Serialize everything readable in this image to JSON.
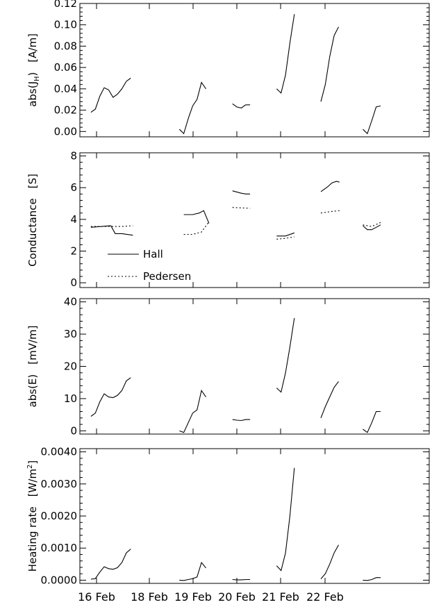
{
  "x_ticks": [
    {
      "label": "16 Feb",
      "day": 16.0
    },
    {
      "label": "18 Feb",
      "day": 18.0
    },
    {
      "label": "19 Feb",
      "day": 19.0
    },
    {
      "label": "20 Feb",
      "day": 20.0
    },
    {
      "label": "21 Feb",
      "day": 21.0
    },
    {
      "label": "22 Feb",
      "day": 22.0
    }
  ],
  "legend": {
    "hall": "Hall",
    "pedersen": "Pedersen"
  },
  "panels": [
    {
      "key": "jh",
      "ylabel_main": "abs(J",
      "ylabel_sub": "H",
      "ylabel_tail": ")",
      "yunit_main": "[A/m]",
      "yunit_sup": "",
      "yunit_tail": "",
      "ylim": [
        -0.005,
        0.12
      ],
      "yticks": [
        "0.12",
        "0.10",
        "0.08",
        "0.06",
        "0.04",
        "0.02",
        "0.00"
      ],
      "ytick_values": [
        0.12,
        0.1,
        0.08,
        0.06,
        0.04,
        0.02,
        0.0
      ]
    },
    {
      "key": "cond",
      "ylabel_main": "Conductance",
      "ylabel_sub": "",
      "ylabel_tail": "",
      "yunit_main": "[S]",
      "yunit_sup": "",
      "yunit_tail": "",
      "ylim": [
        -0.3,
        8.2
      ],
      "yticks": [
        "8",
        "6",
        "4",
        "2",
        "0"
      ],
      "ytick_values": [
        8,
        6,
        4,
        2,
        0
      ]
    },
    {
      "key": "e",
      "ylabel_main": "abs(E)",
      "ylabel_sub": "",
      "ylabel_tail": "",
      "yunit_main": "[mV/m]",
      "yunit_sup": "",
      "yunit_tail": "",
      "ylim": [
        -1,
        41
      ],
      "yticks": [
        "40",
        "30",
        "20",
        "10",
        "0"
      ],
      "ytick_values": [
        40,
        30,
        20,
        10,
        0
      ]
    },
    {
      "key": "heat",
      "ylabel_main": "Heating rate",
      "ylabel_sub": "",
      "ylabel_tail": "",
      "yunit_main": "[W/m",
      "yunit_sup": "2",
      "yunit_tail": "]",
      "ylim": [
        -0.0001,
        0.0041
      ],
      "yticks": [
        "0.0040",
        "0.0030",
        "0.0020",
        "0.0010",
        "0.0000"
      ],
      "ytick_values": [
        0.004,
        0.003,
        0.002,
        0.001,
        0.0
      ]
    }
  ],
  "chart_data": [
    {
      "type": "line",
      "ylabel": "abs(JH) [A/m]",
      "ylim": [
        -0.005,
        0.12
      ],
      "x_unit": "day of February",
      "series": [
        {
          "segments": [
            {
              "x": [
                15.75,
                15.85,
                15.95,
                16.05,
                16.15,
                16.25,
                16.35,
                16.45,
                16.55,
                16.65
              ],
              "y": [
                0.018,
                0.021,
                0.033,
                0.041,
                0.039,
                0.032,
                0.035,
                0.04,
                0.047,
                0.05
              ]
            },
            {
              "x": [
                17.75,
                17.85,
                17.95,
                18.05,
                18.15,
                18.25,
                18.35
              ],
              "y": [
                0.002,
                -0.002,
                0.012,
                0.024,
                0.03,
                0.046,
                0.04
              ]
            },
            {
              "x": [
                18.95,
                19.05,
                19.15,
                19.25,
                19.35
              ],
              "y": [
                0.026,
                0.023,
                0.022,
                0.025,
                0.025
              ]
            },
            {
              "x": [
                19.95,
                20.05,
                20.15,
                20.25,
                20.35
              ],
              "y": [
                0.04,
                0.036,
                0.053,
                0.083,
                0.11
              ]
            },
            {
              "x": [
                20.95,
                21.05,
                21.15,
                21.25,
                21.35
              ],
              "y": [
                0.028,
                0.044,
                0.07,
                0.09,
                0.098
              ]
            },
            {
              "x": [
                21.9,
                22.0,
                22.1,
                22.2,
                22.3
              ],
              "y": [
                0.002,
                -0.002,
                0.01,
                0.023,
                0.024
              ]
            }
          ]
        }
      ]
    },
    {
      "type": "line",
      "ylabel": "Conductance [S]",
      "ylim": [
        -0.3,
        8.2
      ],
      "x_unit": "day of February",
      "series": [
        {
          "name": "Hall",
          "style": "solid",
          "segments": [
            {
              "x": [
                15.75,
                16.2,
                16.3,
                16.45,
                16.7
              ],
              "y": [
                3.5,
                3.6,
                3.1,
                3.1,
                3.0
              ]
            },
            {
              "x": [
                17.85,
                18.05,
                18.2,
                18.3,
                18.42
              ],
              "y": [
                4.3,
                4.3,
                4.4,
                4.55,
                3.75
              ]
            },
            {
              "x": [
                18.95,
                19.15,
                19.25,
                19.35
              ],
              "y": [
                5.8,
                5.65,
                5.6,
                5.6
              ]
            },
            {
              "x": [
                19.95,
                20.15,
                20.35
              ],
              "y": [
                2.95,
                2.95,
                3.15
              ]
            },
            {
              "x": [
                20.95,
                21.1,
                21.2,
                21.3,
                21.37
              ],
              "y": [
                5.75,
                6.05,
                6.3,
                6.4,
                6.35
              ]
            },
            {
              "x": [
                21.9,
                22.0,
                22.1,
                22.2,
                22.3
              ],
              "y": [
                3.6,
                3.35,
                3.35,
                3.5,
                3.65
              ]
            }
          ]
        },
        {
          "name": "Pedersen",
          "style": "dotted",
          "segments": [
            {
              "x": [
                15.75,
                16.15,
                16.45,
                16.7
              ],
              "y": [
                3.55,
                3.55,
                3.55,
                3.6
              ]
            },
            {
              "x": [
                17.85,
                18.05,
                18.25,
                18.42
              ],
              "y": [
                3.05,
                3.05,
                3.2,
                3.85
              ]
            },
            {
              "x": [
                18.95,
                19.35
              ],
              "y": [
                4.75,
                4.7
              ]
            },
            {
              "x": [
                19.95,
                20.15,
                20.35
              ],
              "y": [
                2.75,
                2.8,
                2.9
              ]
            },
            {
              "x": [
                20.95,
                21.2,
                21.37
              ],
              "y": [
                4.4,
                4.5,
                4.55
              ]
            },
            {
              "x": [
                21.9,
                22.1,
                22.3
              ],
              "y": [
                3.65,
                3.55,
                3.8
              ]
            }
          ]
        }
      ]
    },
    {
      "type": "line",
      "ylabel": "abs(E) [mV/m]",
      "ylim": [
        -1,
        41
      ],
      "x_unit": "day of February",
      "series": [
        {
          "segments": [
            {
              "x": [
                15.75,
                15.85,
                15.95,
                16.05,
                16.15,
                16.25,
                16.35,
                16.45,
                16.55,
                16.65
              ],
              "y": [
                4.5,
                5.5,
                9,
                11.5,
                10.5,
                10.3,
                11,
                12.5,
                15.5,
                16.5
              ]
            },
            {
              "x": [
                17.75,
                17.85,
                17.95,
                18.05,
                18.15,
                18.25,
                18.35
              ],
              "y": [
                0,
                -0.5,
                2.5,
                5.5,
                6.5,
                12.5,
                10.5
              ]
            },
            {
              "x": [
                18.95,
                19.05,
                19.15,
                19.25,
                19.35
              ],
              "y": [
                3.5,
                3.3,
                3.2,
                3.5,
                3.5
              ]
            },
            {
              "x": [
                19.95,
                20.05,
                20.15,
                20.25,
                20.35
              ],
              "y": [
                13.3,
                12,
                18,
                26,
                35
              ]
            },
            {
              "x": [
                20.95,
                21.05,
                21.15,
                21.25,
                21.35
              ],
              "y": [
                4,
                7.5,
                10.5,
                13.5,
                15.3
              ]
            },
            {
              "x": [
                21.9,
                22.0,
                22.1,
                22.2,
                22.3
              ],
              "y": [
                0.5,
                -0.5,
                2.5,
                6,
                6
              ]
            }
          ]
        }
      ]
    },
    {
      "type": "line",
      "ylabel": "Heating rate [W/m2]",
      "ylim": [
        -0.0001,
        0.0041
      ],
      "x_unit": "day of February",
      "series": [
        {
          "segments": [
            {
              "x": [
                15.75,
                15.85,
                15.95,
                16.05,
                16.15,
                16.25,
                16.35,
                16.45,
                16.55,
                16.65
              ],
              "y": [
                3e-05,
                5e-05,
                0.00025,
                0.00042,
                0.00036,
                0.00034,
                0.00039,
                0.00055,
                0.00085,
                0.00097
              ]
            },
            {
              "x": [
                17.75,
                17.85,
                17.95,
                18.05,
                18.15,
                18.25,
                18.35
              ],
              "y": [
                0.0,
                -1e-05,
                2e-05,
                5e-05,
                0.0001,
                0.00055,
                0.00038
              ]
            },
            {
              "x": [
                18.95,
                19.05,
                19.15,
                19.25,
                19.35
              ],
              "y": [
                2e-05,
                1e-05,
                1e-05,
                2e-05,
                2e-05
              ]
            },
            {
              "x": [
                19.95,
                20.05,
                20.15,
                20.25,
                20.35
              ],
              "y": [
                0.00045,
                0.0003,
                0.00085,
                0.002,
                0.0035
              ]
            },
            {
              "x": [
                20.95,
                21.05,
                21.15,
                21.25,
                21.35
              ],
              "y": [
                4e-05,
                0.0002,
                0.0005,
                0.00085,
                0.0011
              ]
            },
            {
              "x": [
                21.9,
                22.0,
                22.1,
                22.2,
                22.3
              ],
              "y": [
                0.0,
                -1e-05,
                2e-05,
                8e-05,
                8e-05
              ]
            }
          ]
        }
      ]
    }
  ]
}
